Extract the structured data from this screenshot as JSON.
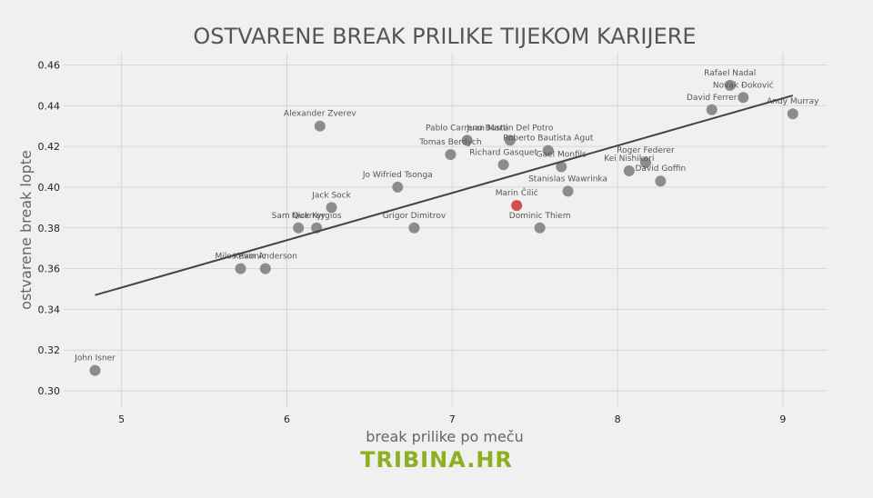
{
  "chart_data": {
    "type": "scatter",
    "title": "OSTVARENE BREAK PRILIKE TIJEKOM KARIJERE",
    "xlabel": "break prilike po meču",
    "ylabel": "ostvarene break lopte",
    "xlim": [
      4.65,
      9.27
    ],
    "ylim": [
      0.292,
      0.466
    ],
    "xticks": [
      "5",
      "6",
      "7",
      "8",
      "9"
    ],
    "xtick_values": [
      5,
      6,
      7,
      8,
      9
    ],
    "yticks": [
      "0.30",
      "0.32",
      "0.34",
      "0.36",
      "0.38",
      "0.40",
      "0.42",
      "0.44",
      "0.46"
    ],
    "ytick_values": [
      0.3,
      0.32,
      0.34,
      0.36,
      0.38,
      0.4,
      0.42,
      0.44,
      0.46
    ],
    "grid": true,
    "point_color": "#8c8c8c",
    "highlight_color": "#d0504f",
    "trendline": {
      "x": [
        4.84,
        9.06
      ],
      "y": [
        0.347,
        0.445
      ],
      "color": "#444444"
    },
    "points": [
      {
        "name": "John Isner",
        "x": 4.84,
        "y": 0.31
      },
      {
        "name": "Milos Raonic",
        "x": 5.72,
        "y": 0.36
      },
      {
        "name": "Kevin Anderson",
        "x": 5.87,
        "y": 0.36
      },
      {
        "name": "Sam Querrey",
        "x": 6.07,
        "y": 0.38
      },
      {
        "name": "Nick Kyrgios",
        "x": 6.18,
        "y": 0.38
      },
      {
        "name": "Jack Sock",
        "x": 6.27,
        "y": 0.39
      },
      {
        "name": "Alexander Zverev",
        "x": 6.2,
        "y": 0.43
      },
      {
        "name": "Jo Wifried Tsonga",
        "x": 6.67,
        "y": 0.4
      },
      {
        "name": "Grigor Dimitrov",
        "x": 6.77,
        "y": 0.38
      },
      {
        "name": "Tomas Berdych",
        "x": 6.99,
        "y": 0.416
      },
      {
        "name": "Pablo Carreno Busta",
        "x": 7.09,
        "y": 0.423
      },
      {
        "name": "Juan Martin Del Potro",
        "x": 7.35,
        "y": 0.423
      },
      {
        "name": "Roberto Bautista Agut",
        "x": 7.58,
        "y": 0.418
      },
      {
        "name": "Richard Gasquet",
        "x": 7.31,
        "y": 0.411
      },
      {
        "name": "Gael Monfils",
        "x": 7.66,
        "y": 0.41
      },
      {
        "name": "Stanislas Wawrinka",
        "x": 7.7,
        "y": 0.398
      },
      {
        "name": "Marin Čilić",
        "x": 7.39,
        "y": 0.391,
        "highlight": true
      },
      {
        "name": "Dominic Thiem",
        "x": 7.53,
        "y": 0.38
      },
      {
        "name": "Roger Federer",
        "x": 8.17,
        "y": 0.412
      },
      {
        "name": "Kei Nishikori",
        "x": 8.07,
        "y": 0.408
      },
      {
        "name": "David Goffin",
        "x": 8.26,
        "y": 0.403
      },
      {
        "name": "David Ferrer",
        "x": 8.57,
        "y": 0.438
      },
      {
        "name": "Rafael Nadal",
        "x": 8.68,
        "y": 0.45
      },
      {
        "name": "Novak Đoković",
        "x": 8.76,
        "y": 0.444
      },
      {
        "name": "Andy Murray",
        "x": 9.06,
        "y": 0.436
      }
    ]
  },
  "footer": {
    "brand": "TRIBINA.HR"
  }
}
